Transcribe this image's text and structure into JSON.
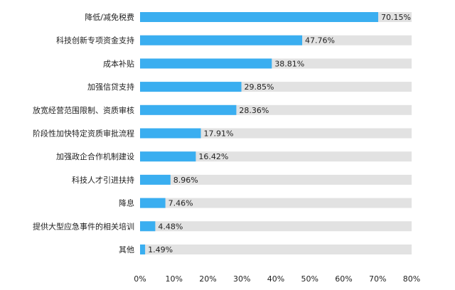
{
  "chart_data": {
    "type": "bar",
    "orientation": "horizontal",
    "categories": [
      "降低/减免税费",
      "科技创新专项资金支持",
      "成本补贴",
      "加强信贷支持",
      "放宽经营范围限制、资质审核",
      "阶段性加快特定资质审批流程",
      "加强政企合作机制建设",
      "科技人才引进扶持",
      "降息",
      "提供大型应急事件的相关培训",
      "其他"
    ],
    "values": [
      70.15,
      47.76,
      38.81,
      29.85,
      28.36,
      17.91,
      16.42,
      8.96,
      7.46,
      4.48,
      1.49
    ],
    "value_labels": [
      "70.15%",
      "47.76%",
      "38.81%",
      "29.85%",
      "28.36%",
      "17.91%",
      "16.42%",
      "8.96%",
      "7.46%",
      "4.48%",
      "1.49%"
    ],
    "xlim": [
      0,
      80
    ],
    "x_ticks": [
      "0%",
      "10%",
      "20%",
      "30%",
      "40%",
      "50%",
      "60%",
      "70%",
      "80%"
    ],
    "bar_color": "#3aaef0",
    "track_color": "#e2e2e2",
    "grid": false,
    "legend": "none"
  }
}
